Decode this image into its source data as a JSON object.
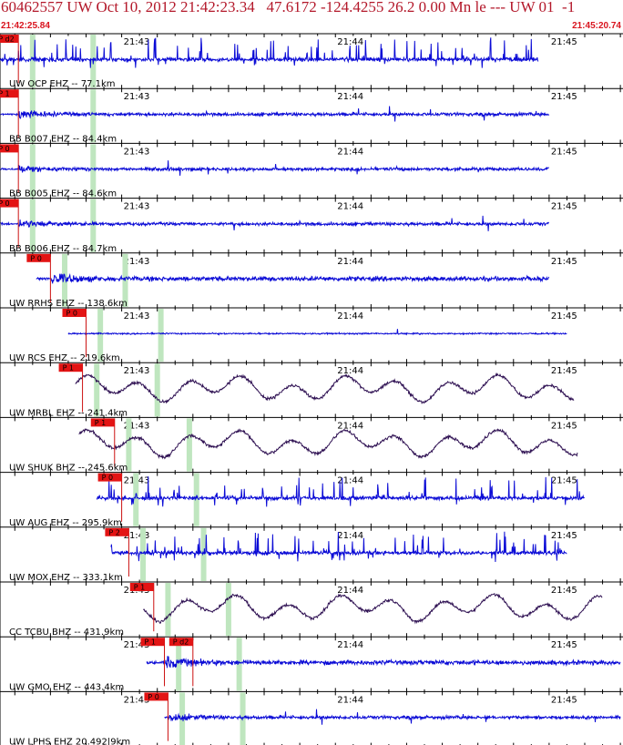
{
  "header": {
    "event_line": "60462557 UW Oct 10, 2012 21:42:23.34   47.6172 -124.4255 26.2 0.00 Mn le --- UW 01  -1",
    "start_time": "21:42:25.84",
    "end_time": "21:45:20.74"
  },
  "colors": {
    "header_text": "#b3182a",
    "time_text": "#d9141e",
    "trace_blue": "#0b0bd6",
    "trace_purple": "#2e1052",
    "pick_box": "#e31414",
    "pick_line": "#cc1111",
    "window_band": "#bfe6bf",
    "axis": "#000000"
  },
  "chart_data": {
    "type": "line",
    "title": "",
    "x_axis": {
      "start": "21:42:25.84",
      "end": "21:45:20.74",
      "tick_labels": [
        "21:43",
        "21:44",
        "21:45"
      ]
    },
    "panels": [
      {
        "label": "UW OCP EHZ -- 77.1km",
        "color": "blue",
        "style": "spiky",
        "picks": [
          {
            "text": "P d2",
            "time": "21:42:31"
          }
        ],
        "data_window": [
          "21:42:25.8",
          "21:44:57"
        ]
      },
      {
        "label": "BB B007 EHZ -- 84.4km",
        "color": "blue",
        "style": "burst",
        "picks": [
          {
            "text": "P 1",
            "time": "21:42:31"
          }
        ],
        "data_window": [
          "21:42:26",
          "21:45:00"
        ]
      },
      {
        "label": "BB B005 EHZ -- 84.6km",
        "color": "blue",
        "style": "burst",
        "picks": [
          {
            "text": "P 0",
            "time": "21:42:31"
          }
        ],
        "data_window": [
          "21:42:26",
          "21:45:00"
        ]
      },
      {
        "label": "BB B006 EHZ -- 84.7km",
        "color": "blue",
        "style": "burst",
        "picks": [
          {
            "text": "P 0",
            "time": "21:42:31"
          }
        ],
        "data_window": [
          "21:42:26",
          "21:45:00"
        ]
      },
      {
        "label": "UW RRHS EHZ -- 138.6km",
        "color": "blue",
        "style": "noise",
        "picks": [
          {
            "text": "P 0",
            "time": "21:42:40"
          }
        ],
        "data_window": [
          "21:42:36",
          "21:45:00"
        ]
      },
      {
        "label": "UW RCS EHZ -- 219.6km",
        "color": "blue",
        "style": "quiet",
        "picks": [
          {
            "text": "P 0",
            "time": "21:42:50"
          }
        ],
        "data_window": [
          "21:42:45",
          "21:45:05"
        ]
      },
      {
        "label": "UW MRBL EHZ -- 241.4km",
        "color": "purple",
        "style": "wave",
        "picks": [
          {
            "text": "P 1",
            "time": "21:42:49"
          }
        ],
        "data_window": [
          "21:42:47",
          "21:45:07"
        ]
      },
      {
        "label": "UW SHUK BHZ -- 245.6km",
        "color": "purple",
        "style": "wave",
        "picks": [
          {
            "text": "P 1",
            "time": "21:42:58"
          }
        ],
        "data_window": [
          "21:42:48",
          "21:45:08"
        ]
      },
      {
        "label": "UW AUG EHZ -- 295.9km",
        "color": "blue",
        "style": "spiky",
        "picks": [
          {
            "text": "P 0",
            "time": "21:43:00"
          }
        ],
        "data_window": [
          "21:42:53",
          "21:45:10"
        ]
      },
      {
        "label": "UW MOX EHZ -- 333.1km",
        "color": "blue",
        "style": "spiky",
        "picks": [
          {
            "text": "P 2",
            "time": "21:43:02"
          }
        ],
        "data_window": [
          "21:42:57",
          "21:45:05"
        ]
      },
      {
        "label": "CC TCBU BHZ -- 431.9km",
        "color": "purple",
        "style": "wave",
        "picks": [
          {
            "text": "P 1",
            "time": "21:43:09"
          }
        ],
        "data_window": [
          "21:43:06",
          "21:45:15"
        ]
      },
      {
        "label": "UW GMO EHZ -- 443.4km",
        "color": "blue",
        "style": "noise",
        "picks": [
          {
            "text": "P 1",
            "time": "21:43:12"
          },
          {
            "text": "P d2",
            "time": "21:43:20"
          }
        ],
        "data_window": [
          "21:43:07",
          "21:45:20"
        ]
      },
      {
        "label": "UW LPHS EHZ 20.492|9km",
        "color": "blue",
        "style": "burst",
        "picks": [
          {
            "text": "P 0",
            "time": "21:43:13"
          }
        ],
        "data_window": [
          "21:43:12",
          "21:45:20"
        ]
      }
    ]
  }
}
